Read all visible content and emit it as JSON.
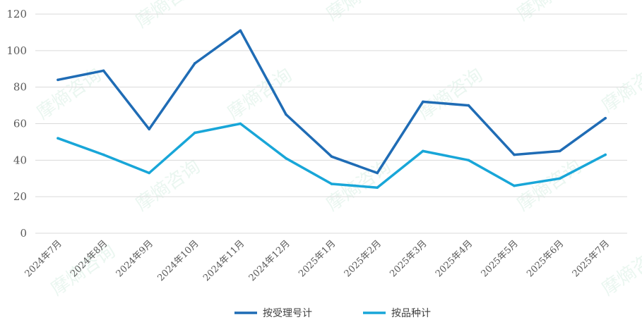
{
  "chart_data": {
    "type": "line",
    "categories": [
      "2024年7月",
      "2024年8月",
      "2024年9月",
      "2024年10月",
      "2024年11月",
      "2024年12月",
      "2025年1月",
      "2025年2月",
      "2025年3月",
      "2025年4月",
      "2025年5月",
      "2025年6月",
      "2025年7月"
    ],
    "series": [
      {
        "name": "按受理号计",
        "color": "#1F6CB5",
        "values": [
          84,
          89,
          57,
          93,
          111,
          65,
          42,
          33,
          72,
          70,
          43,
          45,
          63
        ]
      },
      {
        "name": "按品种计",
        "color": "#18A6D8",
        "values": [
          52,
          43,
          33,
          55,
          60,
          41,
          27,
          25,
          45,
          40,
          26,
          30,
          43
        ]
      }
    ],
    "ylim": [
      0,
      120
    ],
    "yticks": [
      0,
      20,
      40,
      60,
      80,
      100,
      120
    ],
    "grid": true,
    "legend": "bottom-center",
    "title": "",
    "xlabel": "",
    "ylabel": ""
  },
  "watermark": {
    "text": "摩熵咨询"
  }
}
